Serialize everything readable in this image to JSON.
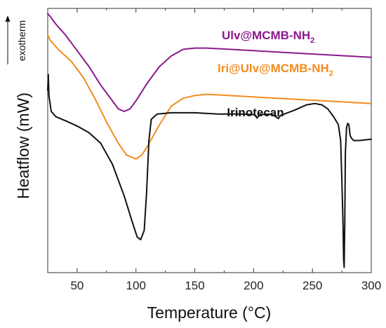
{
  "chart_data": {
    "type": "line",
    "title": "",
    "xlabel": "Temperature (°C)",
    "ylabel": "Heatflow (mW)",
    "exotherm_label": "exotherm",
    "exotherm_direction": "up",
    "xlim": [
      25,
      300
    ],
    "x_ticks": [
      50,
      100,
      150,
      200,
      250,
      300
    ],
    "y_ticks_shown": false,
    "grid": false,
    "legend": "inline labels next to curves",
    "series": [
      {
        "name": "Ulv@MCMB-NH",
        "name_subscript": "2",
        "color": "#8B1A8B",
        "points": [
          [
            25,
            0.98
          ],
          [
            27,
            0.97
          ],
          [
            32,
            0.94
          ],
          [
            40,
            0.9
          ],
          [
            50,
            0.84
          ],
          [
            60,
            0.78
          ],
          [
            70,
            0.71
          ],
          [
            80,
            0.65
          ],
          [
            85,
            0.62
          ],
          [
            90,
            0.61
          ],
          [
            95,
            0.62
          ],
          [
            100,
            0.65
          ],
          [
            110,
            0.72
          ],
          [
            120,
            0.78
          ],
          [
            130,
            0.82
          ],
          [
            140,
            0.845
          ],
          [
            150,
            0.85
          ],
          [
            160,
            0.85
          ],
          [
            180,
            0.845
          ],
          [
            200,
            0.84
          ],
          [
            220,
            0.835
          ],
          [
            240,
            0.83
          ],
          [
            260,
            0.825
          ],
          [
            280,
            0.82
          ],
          [
            300,
            0.815
          ]
        ]
      },
      {
        "name": "Iri@Ulv@MCMB-NH",
        "name_subscript": "2",
        "color": "#F28C1E",
        "points": [
          [
            25,
            0.9
          ],
          [
            27,
            0.88
          ],
          [
            35,
            0.84
          ],
          [
            45,
            0.8
          ],
          [
            55,
            0.74
          ],
          [
            65,
            0.66
          ],
          [
            75,
            0.57
          ],
          [
            85,
            0.49
          ],
          [
            92,
            0.445
          ],
          [
            100,
            0.43
          ],
          [
            105,
            0.445
          ],
          [
            110,
            0.48
          ],
          [
            120,
            0.56
          ],
          [
            130,
            0.63
          ],
          [
            140,
            0.66
          ],
          [
            150,
            0.67
          ],
          [
            160,
            0.675
          ],
          [
            180,
            0.67
          ],
          [
            200,
            0.665
          ],
          [
            220,
            0.66
          ],
          [
            240,
            0.655
          ],
          [
            260,
            0.65
          ],
          [
            280,
            0.645
          ],
          [
            300,
            0.64
          ]
        ]
      },
      {
        "name": "Irinotecan",
        "name_subscript": "",
        "color": "#111111",
        "points": [
          [
            25,
            0.69
          ],
          [
            25.5,
            0.75
          ],
          [
            26,
            0.67
          ],
          [
            28,
            0.61
          ],
          [
            32,
            0.59
          ],
          [
            40,
            0.575
          ],
          [
            50,
            0.555
          ],
          [
            60,
            0.53
          ],
          [
            70,
            0.49
          ],
          [
            80,
            0.41
          ],
          [
            90,
            0.29
          ],
          [
            97,
            0.19
          ],
          [
            101,
            0.135
          ],
          [
            104,
            0.125
          ],
          [
            107,
            0.16
          ],
          [
            109,
            0.3
          ],
          [
            111,
            0.5
          ],
          [
            113,
            0.58
          ],
          [
            118,
            0.6
          ],
          [
            130,
            0.605
          ],
          [
            150,
            0.605
          ],
          [
            170,
            0.6
          ],
          [
            190,
            0.6
          ],
          [
            201,
            0.598
          ],
          [
            203,
            0.585
          ],
          [
            205,
            0.598
          ],
          [
            215,
            0.6
          ],
          [
            219,
            0.59
          ],
          [
            221,
            0.583
          ],
          [
            223,
            0.595
          ],
          [
            235,
            0.615
          ],
          [
            245,
            0.635
          ],
          [
            252,
            0.64
          ],
          [
            258,
            0.635
          ],
          [
            263,
            0.62
          ],
          [
            268,
            0.59
          ],
          [
            272,
            0.56
          ],
          [
            274,
            0.5
          ],
          [
            275,
            0.35
          ],
          [
            276,
            0.18
          ],
          [
            276.5,
            0.05
          ],
          [
            277,
            0.02
          ],
          [
            277.5,
            0.2
          ],
          [
            278,
            0.45
          ],
          [
            279,
            0.55
          ],
          [
            280,
            0.565
          ],
          [
            281,
            0.56
          ],
          [
            282,
            0.52
          ],
          [
            283,
            0.51
          ],
          [
            285,
            0.5
          ],
          [
            290,
            0.5
          ],
          [
            300,
            0.505
          ]
        ]
      }
    ]
  }
}
